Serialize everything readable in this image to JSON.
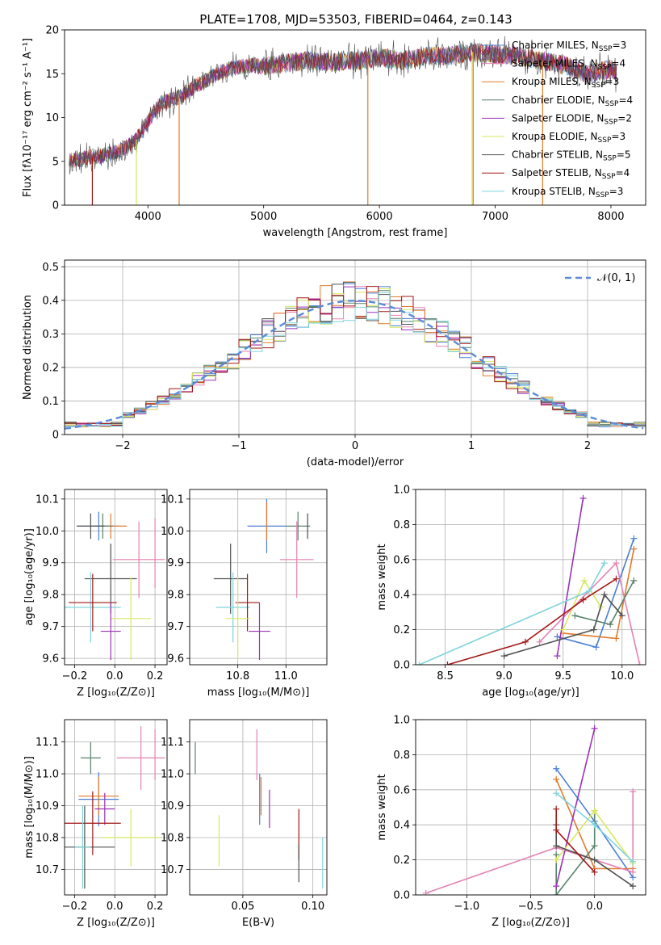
{
  "figure_title": "PLATE=1708, MJD=53503, FIBERID=0464, z=0.143",
  "model_colors": [
    "#4a7fd6",
    "#e07b2a",
    "#e07b2a",
    "#58826a",
    "#9932b8",
    "#d8e860",
    "#505050",
    "#a31717",
    "#7fd3dc",
    "#e582b4"
  ],
  "chart_data": [
    {
      "id": "spectrum",
      "type": "line",
      "title": "PLATE=1708, MJD=53503, FIBERID=0464, z=0.143",
      "xlabel": "wavelength [Angstrom, rest frame]",
      "ylabel": "Flux [fλ10⁻¹⁷ erg cm⁻² s⁻¹ A⁻¹]",
      "xlim": [
        3280,
        8300
      ],
      "ylim": [
        0,
        20
      ],
      "xticks": [
        4000,
        5000,
        6000,
        7000,
        8000
      ],
      "yticks": [
        0,
        5,
        10,
        15,
        20
      ],
      "legend_placement": "upper-right",
      "series": [
        {
          "name": "Chabrier MILES, N_SSP=3",
          "color": "#4a7fd6"
        },
        {
          "name": "Salpeter MILES, N_SSP=4",
          "color": "#e582b4"
        },
        {
          "name": "Kroupa MILES, N_SSP=3",
          "color": "#e07b2a"
        },
        {
          "name": "Chabrier ELODIE, N_SSP=4",
          "color": "#58826a"
        },
        {
          "name": "Salpeter ELODIE, N_SSP=2",
          "color": "#9932b8"
        },
        {
          "name": "Kroupa ELODIE, N_SSP=3",
          "color": "#d8e860"
        },
        {
          "name": "Chabrier STELIB, N_SSP=5",
          "color": "#505050"
        },
        {
          "name": "Salpeter STELIB, N_SSP=4",
          "color": "#a31717"
        },
        {
          "name": "Kroupa STELIB, N_SSP=3",
          "color": "#7fd3dc"
        }
      ],
      "continuum": {
        "x": [
          3300,
          3400,
          3500,
          3600,
          3700,
          3800,
          3900,
          4000,
          4100,
          4200,
          4300,
          4400,
          4500,
          4600,
          4700,
          4800,
          4900,
          5000,
          5200,
          5400,
          5600,
          5800,
          6000,
          6200,
          6400,
          6600,
          6800,
          7000,
          7200,
          7400,
          7600,
          7800,
          8000,
          8050
        ],
        "y": [
          5.0,
          5.2,
          5.5,
          5.6,
          6.0,
          6.5,
          7.5,
          9.5,
          11.5,
          12.0,
          12.5,
          13.5,
          14.2,
          15.0,
          15.5,
          15.8,
          16.0,
          15.8,
          16.2,
          16.5,
          16.3,
          16.5,
          16.8,
          16.5,
          17.0,
          17.0,
          17.5,
          17.2,
          17.0,
          16.5,
          16.0,
          15.0,
          15.5,
          15.0
        ]
      }
    },
    {
      "id": "residuals",
      "type": "histogram",
      "xlabel": "(data-model)/error",
      "ylabel": "Normed distribution",
      "xlim": [
        -2.5,
        2.5
      ],
      "ylim": [
        0,
        0.52
      ],
      "xticks": [
        -2,
        -1,
        0,
        1,
        2
      ],
      "yticks": [
        0.0,
        0.1,
        0.2,
        0.3,
        0.4,
        0.5
      ],
      "bin_width": 0.1,
      "legend_placement": "upper-right",
      "reference_curve": {
        "name": "𝒩(0, 1)",
        "mean": 0,
        "sigma": 1,
        "color": "#5b8bd8"
      },
      "jitter_seeds": [
        11,
        23,
        37,
        41,
        53,
        67,
        71,
        83,
        97
      ]
    },
    {
      "id": "age-vs-z",
      "type": "errorbar",
      "xlabel": "Z [log₁₀(Z/Z⊙)]",
      "ylabel": "age  [log₁₀(age/yr)]",
      "xlim": [
        -0.25,
        0.26
      ],
      "ylim": [
        9.58,
        10.13
      ],
      "xticks": [
        -0.2,
        0.0,
        0.2
      ],
      "xticklabels": [
        "−0.2",
        "0.0",
        "0.2"
      ],
      "yticks": [
        9.6,
        9.7,
        9.8,
        9.9,
        10.0,
        10.1
      ],
      "yticklabels": [
        "9.6",
        "9.7",
        "9.8",
        "9.9",
        "10.0",
        "10.1"
      ],
      "points": [
        {
          "x": -0.08,
          "xerr": 0.1,
          "y": 10.015,
          "yerr": 0.045,
          "color": "#4a7fd6"
        },
        {
          "x": -0.02,
          "xerr": 0.08,
          "y": 10.015,
          "yerr": 0.04,
          "color": "#e07b2a"
        },
        {
          "x": -0.06,
          "xerr": 0.05,
          "y": 10.015,
          "yerr": 0.04,
          "color": "#58826a"
        },
        {
          "x": -0.12,
          "xerr": 0.07,
          "y": 10.015,
          "yerr": 0.04,
          "color": "#505050"
        },
        {
          "x": 0.12,
          "xerr": 0.13,
          "y": 9.91,
          "yerr": 0.12,
          "color": "#e582b4"
        },
        {
          "x": 0.2,
          "xerr": 0.0,
          "y": 9.93,
          "yerr": 0.11,
          "color": "#e582b4"
        },
        {
          "x": -0.02,
          "xerr": 0.13,
          "y": 9.85,
          "yerr": 0.11,
          "color": "#505050"
        },
        {
          "x": -0.12,
          "xerr": 0.15,
          "y": 9.76,
          "yerr": 0.11,
          "color": "#7fd3dc"
        },
        {
          "x": -0.11,
          "xerr": 0.12,
          "y": 9.775,
          "yerr": 0.09,
          "color": "#a31717"
        },
        {
          "x": 0.08,
          "xerr": 0.1,
          "y": 9.725,
          "yerr": 0.13,
          "color": "#d8e860"
        },
        {
          "x": -0.02,
          "xerr": 0.05,
          "y": 9.685,
          "yerr": 0.09,
          "color": "#9932b8"
        }
      ]
    },
    {
      "id": "age-vs-mass",
      "type": "errorbar",
      "xlabel": "mass [log₁₀(M/M⊙)]",
      "xlim": [
        10.6,
        11.17
      ],
      "ylim": [
        9.58,
        10.13
      ],
      "xticks": [
        10.8,
        11.0
      ],
      "xticklabels": [
        "10.8",
        "11.0"
      ],
      "yticks": [
        9.6,
        9.7,
        9.8,
        9.9,
        10.0,
        10.1
      ],
      "yticklabels": [
        "9.6",
        "9.7",
        "9.8",
        "9.9",
        "10.0",
        "10.1"
      ],
      "points": [
        {
          "x": 10.92,
          "xerr": 0.08,
          "y": 10.015,
          "yerr": 0.085,
          "color": "#4a7fd6"
        },
        {
          "x": 10.92,
          "xerr": 0.0,
          "y": 10.03,
          "yerr": 0.06,
          "color": "#e07b2a"
        },
        {
          "x": 11.05,
          "xerr": 0.05,
          "y": 10.015,
          "yerr": 0.045,
          "color": "#58826a"
        },
        {
          "x": 11.09,
          "xerr": 0.0,
          "y": 10.015,
          "yerr": 0.04,
          "color": "#505050"
        },
        {
          "x": 11.045,
          "xerr": 0.07,
          "y": 9.91,
          "yerr": 0.12,
          "color": "#e582b4"
        },
        {
          "x": 10.77,
          "xerr": 0.07,
          "y": 9.85,
          "yerr": 0.11,
          "color": "#505050"
        },
        {
          "x": 10.78,
          "xerr": 0.07,
          "y": 9.76,
          "yerr": 0.11,
          "color": "#7fd3dc"
        },
        {
          "x": 10.84,
          "xerr": 0.05,
          "y": 9.775,
          "yerr": 0.09,
          "color": "#a31717"
        },
        {
          "x": 10.8,
          "xerr": 0.05,
          "y": 9.725,
          "yerr": 0.13,
          "color": "#d8e860"
        },
        {
          "x": 10.89,
          "xerr": 0.045,
          "y": 9.685,
          "yerr": 0.09,
          "color": "#9932b8"
        }
      ]
    },
    {
      "id": "weight-vs-age",
      "type": "line",
      "xlabel": "age  [log₁₀(age/yr)]",
      "ylabel": "mass weight",
      "xlim": [
        8.25,
        10.2
      ],
      "ylim": [
        0,
        1
      ],
      "xticks": [
        8.5,
        9.0,
        9.5,
        10.0
      ],
      "xticklabels": [
        "8.5",
        "9.0",
        "9.5",
        "10.0"
      ],
      "yticks": [
        0.0,
        0.2,
        0.4,
        0.6,
        0.8,
        1.0
      ],
      "yticklabels": [
        "0.0",
        "0.2",
        "0.4",
        "0.6",
        "0.8",
        "1.0"
      ],
      "series": [
        {
          "color": "#4a7fd6",
          "x": [
            9.45,
            9.78,
            10.1
          ],
          "y": [
            0.16,
            0.1,
            0.72
          ]
        },
        {
          "color": "#e07b2a",
          "x": [
            9.5,
            9.95,
            10.1
          ],
          "y": [
            0.18,
            0.15,
            0.66
          ]
        },
        {
          "color": "#e582b4",
          "x": [
            9.3,
            9.95,
            10.15
          ],
          "y": [
            0.13,
            0.58,
            0.0
          ]
        },
        {
          "color": "#58826a",
          "x": [
            9.6,
            9.9,
            10.1
          ],
          "y": [
            0.28,
            0.23,
            0.48
          ]
        },
        {
          "color": "#9932b8",
          "x": [
            9.45,
            9.67
          ],
          "y": [
            0.05,
            0.95
          ]
        },
        {
          "color": "#d8e860",
          "x": [
            9.5,
            9.68,
            9.82
          ],
          "y": [
            0.2,
            0.48,
            0.33
          ]
        },
        {
          "color": "#505050",
          "x": [
            9.0,
            9.76,
            9.85,
            10.0
          ],
          "y": [
            0.05,
            0.2,
            0.4,
            0.28
          ]
        },
        {
          "color": "#a31717",
          "x": [
            8.52,
            9.18,
            9.67,
            9.95
          ],
          "y": [
            0.0,
            0.13,
            0.37,
            0.49
          ]
        },
        {
          "color": "#7fd3dc",
          "x": [
            8.28,
            9.72,
            9.85
          ],
          "y": [
            0.0,
            0.42,
            0.58
          ]
        }
      ]
    },
    {
      "id": "mass-vs-z",
      "type": "errorbar",
      "xlabel": "Z [log₁₀(Z/Z⊙)]",
      "ylabel": "mass [log₁₀(M/M⊙)]",
      "xlim": [
        -0.25,
        0.26
      ],
      "ylim": [
        10.62,
        11.17
      ],
      "xticks": [
        -0.2,
        0.0,
        0.2
      ],
      "xticklabels": [
        "−0.2",
        "0.0",
        "0.2"
      ],
      "yticks": [
        10.7,
        10.8,
        10.9,
        11.0,
        11.1
      ],
      "yticklabels": [
        "10.7",
        "10.8",
        "10.9",
        "11.0",
        "11.1"
      ],
      "points": [
        {
          "x": -0.08,
          "xerr": 0.1,
          "y": 10.92,
          "yerr": 0.085,
          "color": "#4a7fd6"
        },
        {
          "x": -0.08,
          "xerr": 0.1,
          "y": 10.93,
          "yerr": 0.06,
          "color": "#e07b2a"
        },
        {
          "x": -0.12,
          "xerr": 0.05,
          "y": 11.05,
          "yerr": 0.05,
          "color": "#58826a"
        },
        {
          "x": 0.13,
          "xerr": 0.12,
          "y": 11.05,
          "yerr": 0.1,
          "color": "#e582b4"
        },
        {
          "x": 0.2,
          "xerr": 0.0,
          "y": 11.06,
          "yerr": 0.08,
          "color": "#e582b4"
        },
        {
          "x": -0.05,
          "xerr": 0.05,
          "y": 10.89,
          "yerr": 0.05,
          "color": "#9932b8"
        },
        {
          "x": -0.11,
          "xerr": 0.14,
          "y": 10.845,
          "yerr": 0.1,
          "color": "#a31717"
        },
        {
          "x": 0.08,
          "xerr": 0.15,
          "y": 10.8,
          "yerr": 0.09,
          "color": "#d8e860"
        },
        {
          "x": -0.15,
          "xerr": 0.15,
          "y": 10.77,
          "yerr": 0.13,
          "color": "#505050"
        },
        {
          "x": -0.16,
          "xerr": 0.04,
          "y": 10.77,
          "yerr": 0.13,
          "color": "#7fd3dc"
        }
      ]
    },
    {
      "id": "mass-vs-ebv",
      "type": "errorbar",
      "xlabel": "E(B-V)",
      "xlim": [
        0.012,
        0.11
      ],
      "ylim": [
        10.62,
        11.17
      ],
      "xticks": [
        0.05,
        0.1
      ],
      "xticklabels": [
        "0.05",
        "0.10"
      ],
      "yticks": [
        10.7,
        10.8,
        10.9,
        11.0,
        11.1
      ],
      "yticklabels": [
        "10.7",
        "10.8",
        "10.9",
        "11.0",
        "11.1"
      ],
      "points": [
        {
          "x": 0.016,
          "xerr": 0,
          "y": 11.05,
          "yerr": 0.05,
          "color": "#58826a"
        },
        {
          "x": 0.06,
          "xerr": 0,
          "y": 11.06,
          "yerr": 0.08,
          "color": "#e582b4"
        },
        {
          "x": 0.062,
          "xerr": 0,
          "y": 10.92,
          "yerr": 0.08,
          "color": "#4a7fd6"
        },
        {
          "x": 0.063,
          "xerr": 0,
          "y": 10.93,
          "yerr": 0.06,
          "color": "#e07b2a"
        },
        {
          "x": 0.069,
          "xerr": 0,
          "y": 10.89,
          "yerr": 0.06,
          "color": "#9932b8"
        },
        {
          "x": 0.033,
          "xerr": 0,
          "y": 10.79,
          "yerr": 0.08,
          "color": "#d8e860"
        },
        {
          "x": 0.09,
          "xerr": 0,
          "y": 10.81,
          "yerr": 0.08,
          "color": "#a31717"
        },
        {
          "x": 0.09,
          "xerr": 0,
          "y": 10.72,
          "yerr": 0.06,
          "color": "#505050"
        },
        {
          "x": 0.107,
          "xerr": 0,
          "y": 10.72,
          "yerr": 0.08,
          "color": "#7fd3dc"
        }
      ]
    },
    {
      "id": "weight-vs-z",
      "type": "line",
      "xlabel": "Z [log₁₀(Z/Z⊙)]",
      "ylabel": "mass weight",
      "xlim": [
        -1.4,
        0.4
      ],
      "ylim": [
        0,
        1
      ],
      "xticks": [
        -1.0,
        -0.5,
        0.0
      ],
      "xticklabels": [
        "−1.0",
        "−0.5",
        "0.0"
      ],
      "yticks": [
        0.0,
        0.2,
        0.4,
        0.6,
        0.8,
        1.0
      ],
      "yticklabels": [
        "0.0",
        "0.2",
        "0.4",
        "0.6",
        "0.8",
        "1.0"
      ],
      "series": [
        {
          "color": "#4a7fd6",
          "x": [
            -0.3,
            0.0,
            0.3
          ],
          "y": [
            0.72,
            0.42,
            0.1
          ]
        },
        {
          "color": "#e07b2a",
          "x": [
            -0.3,
            0.0,
            0.3
          ],
          "y": [
            0.66,
            0.15,
            0.15
          ]
        },
        {
          "color": "#e582b4",
          "x": [
            -1.32,
            -0.3,
            0.3,
            0.3
          ],
          "y": [
            0.01,
            0.27,
            0.13,
            0.59
          ]
        },
        {
          "color": "#58826a",
          "x": [
            -0.3,
            -0.3,
            0.0,
            0.0
          ],
          "y": [
            0.23,
            0.0,
            0.28,
            0.48
          ]
        },
        {
          "color": "#9932b8",
          "x": [
            -0.3,
            0.0
          ],
          "y": [
            0.05,
            0.95
          ]
        },
        {
          "color": "#d8e860",
          "x": [
            -0.3,
            0.0,
            0.3
          ],
          "y": [
            0.2,
            0.48,
            0.18
          ]
        },
        {
          "color": "#505050",
          "x": [
            -0.3,
            -0.3,
            0.0,
            0.3
          ],
          "y": [
            0.4,
            0.28,
            0.2,
            0.05
          ]
        },
        {
          "color": "#a31717",
          "x": [
            -0.3,
            -0.3,
            0.0
          ],
          "y": [
            0.49,
            0.37,
            0.13
          ]
        },
        {
          "color": "#7fd3dc",
          "x": [
            -0.3,
            0.0,
            0.3
          ],
          "y": [
            0.58,
            0.4,
            0.19
          ]
        }
      ]
    }
  ]
}
